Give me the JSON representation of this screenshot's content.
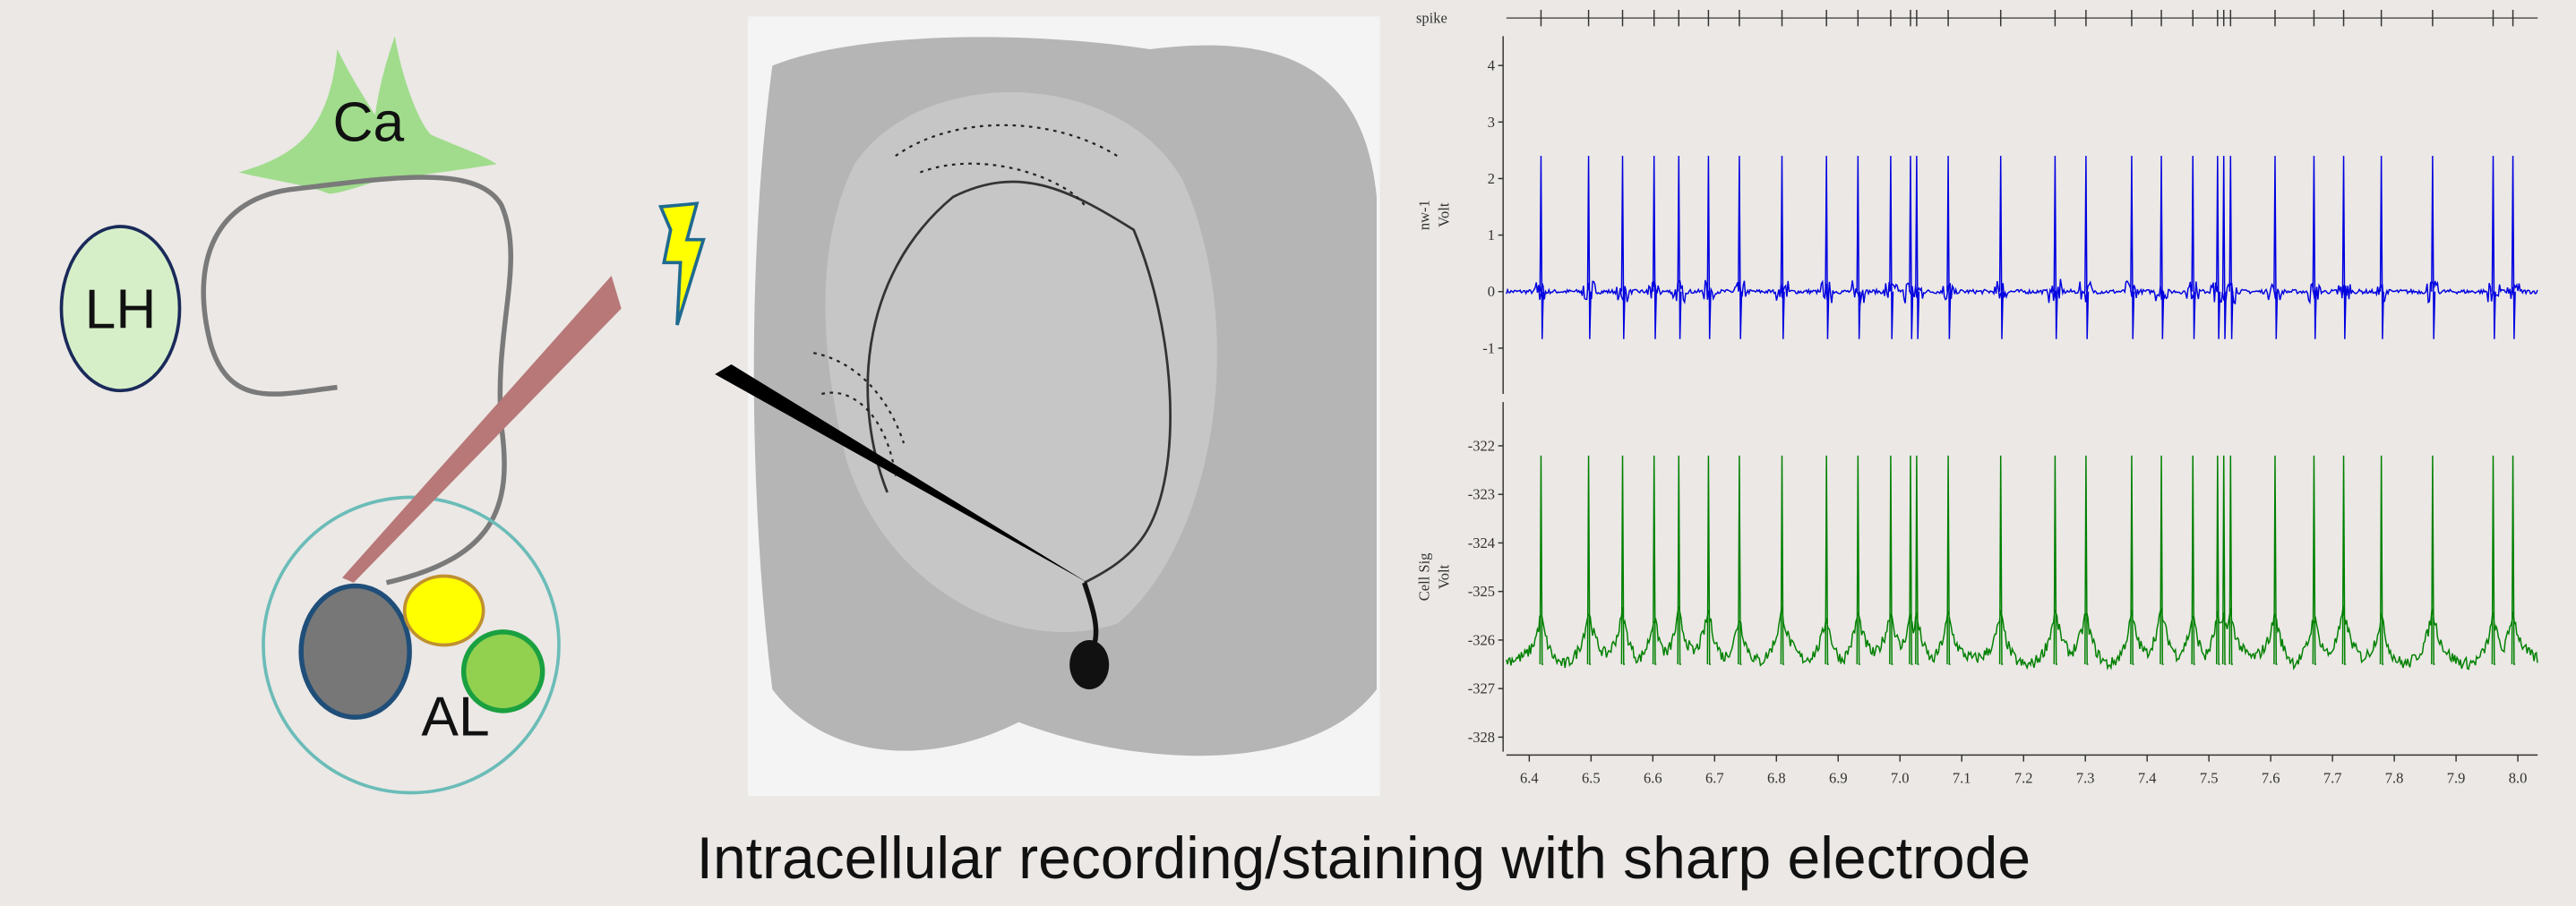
{
  "diagram": {
    "labels": {
      "ca": "Ca",
      "lh": "LH",
      "al": "AL"
    }
  },
  "recording": {
    "spike_label": "spike",
    "spike_times": [
      6.419,
      6.496,
      6.551,
      6.602,
      6.642,
      6.69,
      6.74,
      6.809,
      6.881,
      6.932,
      6.985,
      7.017,
      7.027,
      7.078,
      7.163,
      7.251,
      7.301,
      7.375,
      7.423,
      7.474,
      7.514,
      7.524,
      7.535,
      7.607,
      7.67,
      7.718,
      7.779,
      7.862,
      7.96,
      7.992
    ],
    "xlim": [
      6.363,
      8.032
    ],
    "xticks": [
      6.4,
      6.5,
      6.6,
      6.7,
      6.8,
      6.9,
      {
        "value": 7,
        "label": "7.0"
      },
      7.1,
      7.2,
      7.3,
      7.4,
      7.5,
      7.6,
      7.7,
      7.8,
      7.9,
      {
        "value": 8,
        "label": "8.0"
      }
    ],
    "panels": [
      {
        "name": "nw-1",
        "unit": "Volt",
        "ylim": [
          -1.81,
          4.52
        ],
        "yticks": [
          -1,
          0,
          1,
          2,
          3,
          4
        ],
        "baseline": 0,
        "spike_peak": 2.4,
        "color": "#0000e0"
      },
      {
        "name": "Cell Sig",
        "unit": "Volt",
        "ylim": [
          -328.3,
          -321.1
        ],
        "yticks": [
          -328,
          -327,
          -326,
          -325,
          -324,
          -323,
          -322
        ],
        "baseline": -326.5,
        "spike_peak": -322.2,
        "color": "#008000"
      }
    ]
  },
  "caption": "Intracellular recording/staining with sharp electrode"
}
